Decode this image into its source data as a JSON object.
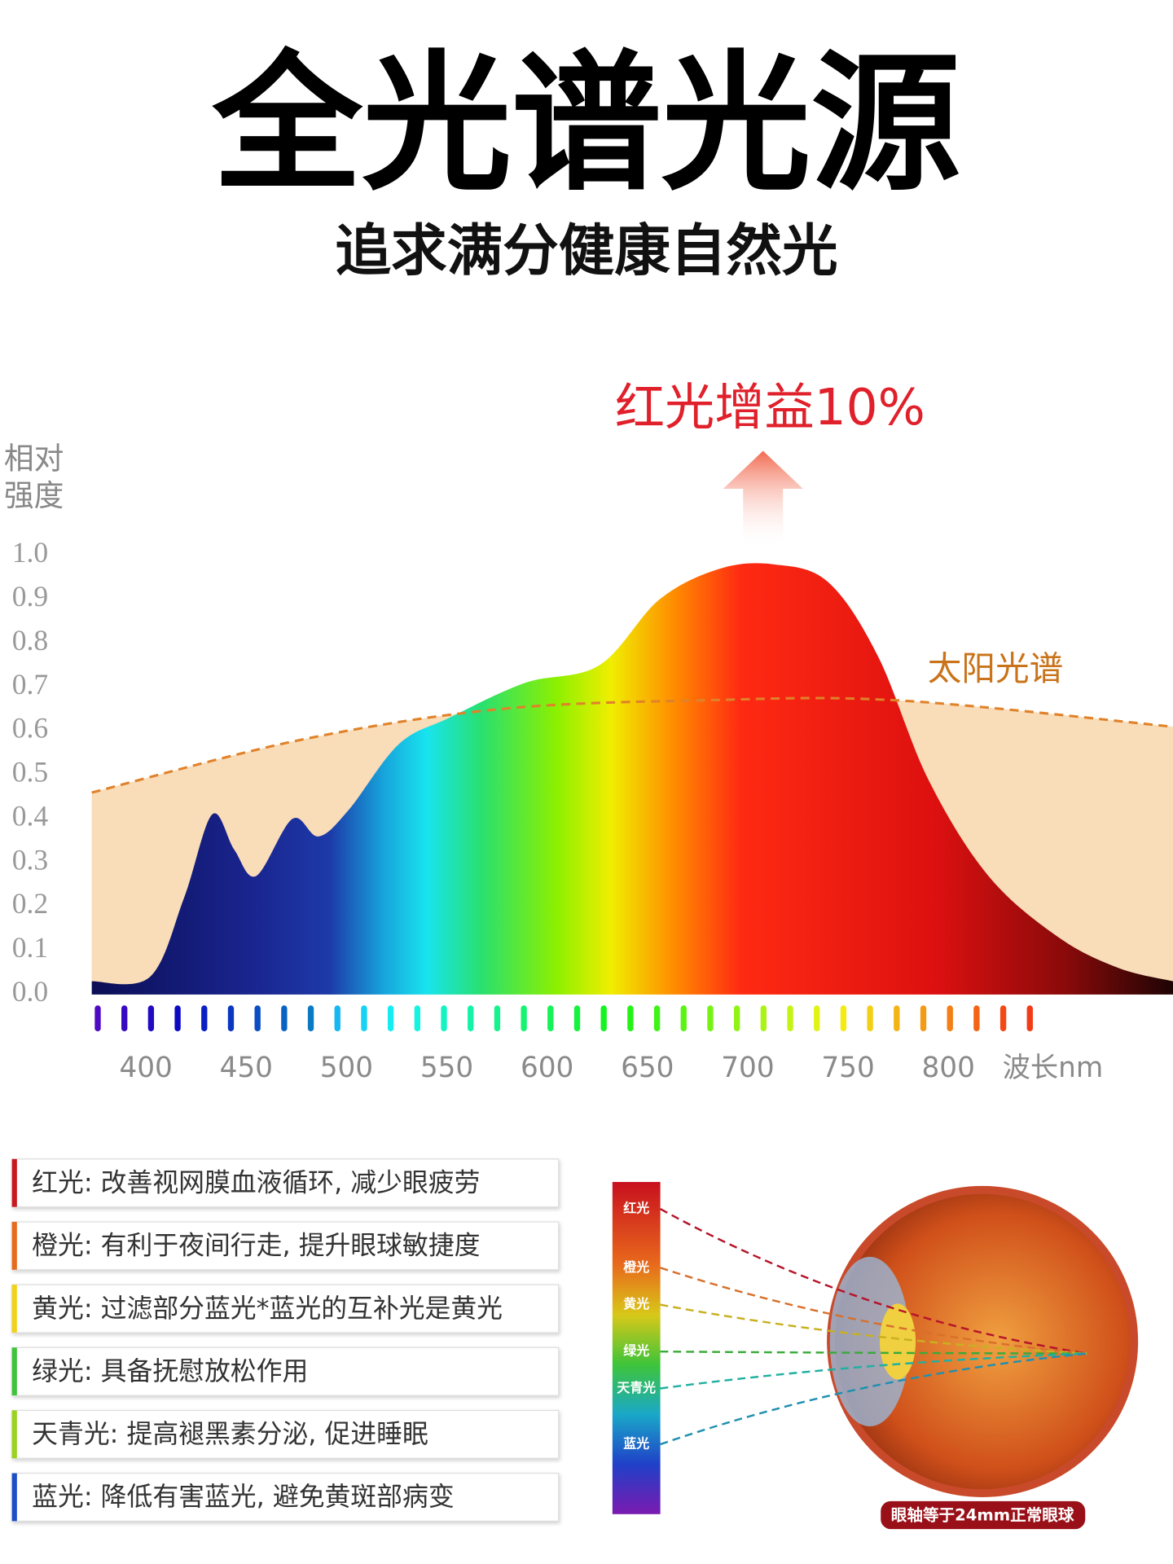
{
  "header": {
    "title": "全光谱光源",
    "subtitle": "追求满分健康自然光"
  },
  "chart_data": {
    "type": "area",
    "annotation": "红光增益10%",
    "sun_label": "太阳光谱",
    "ylabel": "相对强度",
    "xlabel": "波长nm",
    "xlim": [
      373,
      912
    ],
    "xticks": [
      400,
      450,
      500,
      550,
      600,
      650,
      700,
      750,
      800
    ],
    "ylim": [
      0,
      1
    ],
    "yticks": [
      {
        "value": 0,
        "label": "0.0"
      },
      0.1,
      0.2,
      0.3,
      0.4,
      0.5,
      0.6,
      0.7,
      0.8,
      0.9,
      {
        "value": 1,
        "label": "1.0"
      }
    ],
    "grid": false,
    "series": [
      {
        "name": "全光谱",
        "style": "spectrum",
        "x": [
          373,
          402,
          419,
          433,
          444,
          455,
          473,
          486,
          501,
          526,
          551,
          589,
          626,
          656,
          686,
          713,
          740,
          765,
          790,
          820,
          855,
          885,
          912
        ],
        "values": [
          0.03,
          0.04,
          0.22,
          0.41,
          0.33,
          0.27,
          0.4,
          0.36,
          0.42,
          0.57,
          0.63,
          0.71,
          0.75,
          0.9,
          0.97,
          0.98,
          0.94,
          0.77,
          0.49,
          0.27,
          0.13,
          0.06,
          0.03
        ]
      },
      {
        "name": "太阳光谱",
        "style": "dashed",
        "color": "#e0822a",
        "fill": "#f9dcb8",
        "x": [
          373,
          477,
          576,
          676,
          775,
          912
        ],
        "values": [
          0.46,
          0.58,
          0.65,
          0.67,
          0.67,
          0.61
        ]
      }
    ]
  },
  "legend_notes": [
    {
      "color": "#c8171e",
      "text": "红光: 改善视网膜血液循环, 减少眼疲劳"
    },
    {
      "color": "#e86a1c",
      "text": "橙光: 有利于夜间行走, 提升眼球敏捷度"
    },
    {
      "color": "#f2d11a",
      "text": "黄光: 过滤部分蓝光*蓝光的互补光是黄光"
    },
    {
      "color": "#3ec43a",
      "text": "绿光: 具备抚慰放松作用"
    },
    {
      "color": "#9ad21e",
      "text": "天青光: 提高褪黑素分泌, 促进睡眠"
    },
    {
      "color": "#1a4fc8",
      "text": "蓝光: 降低有害蓝光, 避免黄斑部病变"
    }
  ],
  "eye_diagram": {
    "bands": [
      {
        "label": "红光",
        "color": "#b5142a"
      },
      {
        "label": "橙光",
        "color": "#d8702a"
      },
      {
        "label": "黄光",
        "color": "#c8b020"
      },
      {
        "label": "绿光",
        "color": "#3aaa3a"
      },
      {
        "label": "天青光",
        "color": "#1fb0a0"
      },
      {
        "label": "蓝光",
        "color": "#2090b0"
      }
    ],
    "caption": "眼轴等于24mm正常眼球"
  }
}
